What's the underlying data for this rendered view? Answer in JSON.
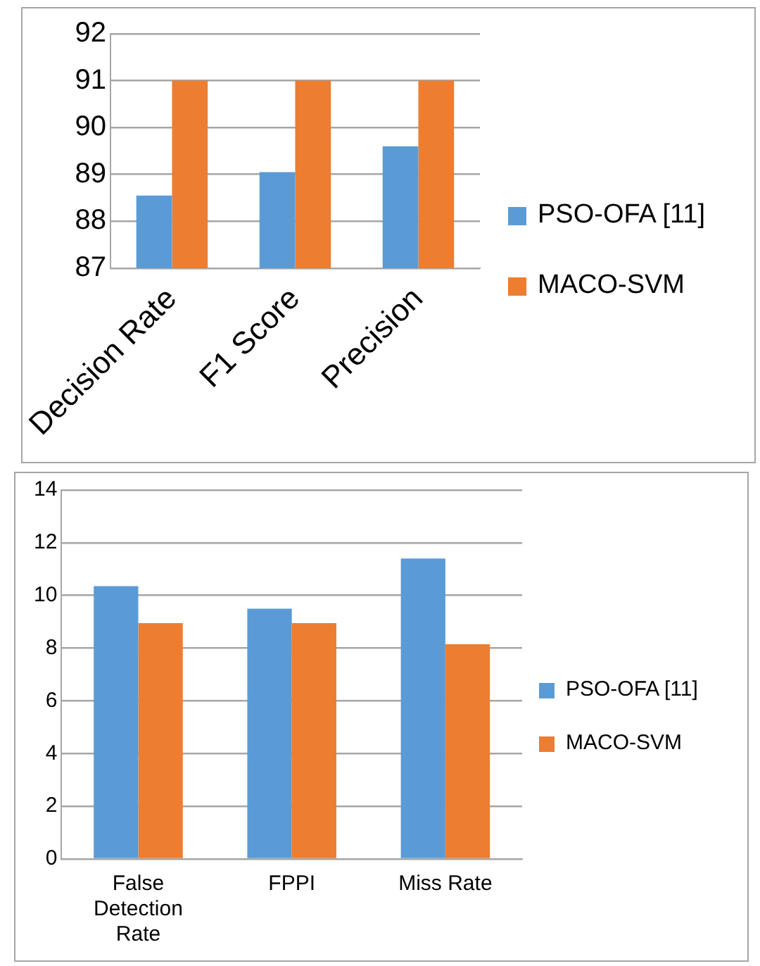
{
  "chart_data": [
    {
      "type": "bar",
      "categories": [
        "Decision Rate",
        "F1 Score",
        "Precision"
      ],
      "series": [
        {
          "name": "PSO-OFA [11]",
          "color": "#5b9bd5",
          "values": [
            88.55,
            89.05,
            89.6
          ]
        },
        {
          "name": "MACO-SVM",
          "color": "#ed7d31",
          "values": [
            91,
            91,
            91
          ]
        }
      ],
      "ylim": [
        87,
        92
      ],
      "yticks": [
        87,
        88,
        89,
        90,
        91,
        92
      ],
      "grid": "y",
      "legend": "right"
    },
    {
      "type": "bar",
      "categories": [
        "False Detection Rate",
        "FPPI",
        "Miss Rate"
      ],
      "series": [
        {
          "name": "PSO-OFA [11]",
          "color": "#5b9bd5",
          "values": [
            10.35,
            9.5,
            11.4
          ]
        },
        {
          "name": "MACO-SVM",
          "color": "#ed7d31",
          "values": [
            8.95,
            8.95,
            8.15
          ]
        }
      ],
      "ylim": [
        0,
        14
      ],
      "yticks": [
        0,
        2,
        4,
        6,
        8,
        10,
        12,
        14
      ],
      "grid": "y",
      "legend": "right"
    }
  ]
}
